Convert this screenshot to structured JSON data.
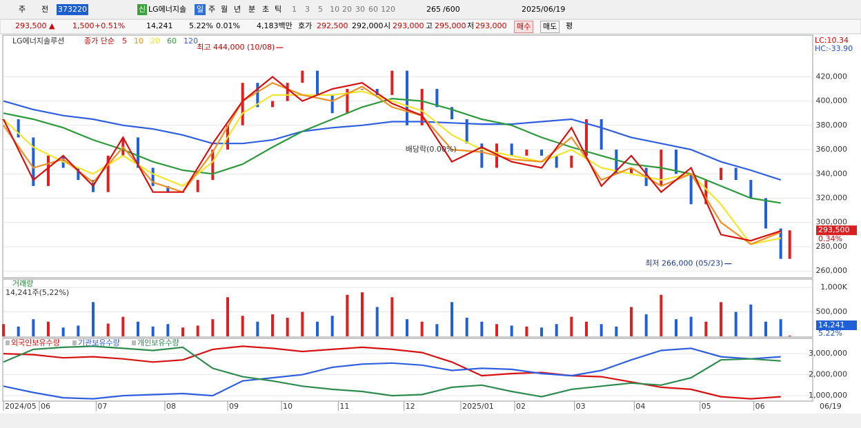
{
  "toolbar": [
    "주",
    "전",
    "373220",
    "신",
    "LG에너지솔",
    "일",
    "주",
    "월",
    "년",
    "분",
    "초",
    "틱",
    "1",
    "3",
    "5",
    "10",
    "20",
    "30",
    "60",
    "120",
    "265",
    "/600",
    "2025/06/19"
  ],
  "infobar": [
    "293,500 ▲",
    "1,500",
    "+0.51%",
    "14,241",
    "5.22%",
    "0.01%",
    "4,183백만",
    "호가",
    "292,500",
    "292,000",
    "시",
    "293,000",
    "고",
    "295,000",
    "저",
    "293,000",
    "매수",
    "매도",
    "평"
  ],
  "chart_data": [
    {
      "type": "candlestick-line",
      "title": "LG에너지솔루션",
      "legend_prefix": "종가 단순",
      "lc_label": "LC:10.34",
      "hc_label": "HC:-33.90",
      "last_price": {
        "value": 293500,
        "label": "293,500"
      },
      "change_label": "0.34%",
      "xlim": [
        0,
        270
      ],
      "ylim": [
        255000,
        452000
      ],
      "yticks": [
        {
          "value": 260000,
          "label": "260,000"
        },
        {
          "value": 280000,
          "label": "280,000"
        },
        {
          "value": 300000,
          "label": "300,000"
        },
        {
          "value": 320000,
          "label": "320,000"
        },
        {
          "value": 340000,
          "label": "340,000"
        },
        {
          "value": 360000,
          "label": "360,000"
        },
        {
          "value": 380000,
          "label": "380,000"
        },
        {
          "value": 400000,
          "label": "400,000"
        },
        {
          "value": 420000,
          "label": "420,000"
        }
      ],
      "candles": {
        "x": [
          0,
          5,
          10,
          15,
          20,
          25,
          30,
          35,
          40,
          45,
          50,
          55,
          60,
          65,
          70,
          75,
          80,
          85,
          90,
          95,
          100,
          105,
          110,
          115,
          120,
          125,
          130,
          135,
          140,
          145,
          150,
          155,
          160,
          165,
          170,
          175,
          180,
          185,
          190,
          195,
          200,
          205,
          210,
          215,
          220,
          225,
          230,
          235,
          240,
          245,
          250,
          255,
          260,
          263
        ],
        "values": [
          385000,
          370000,
          330000,
          355000,
          345000,
          335000,
          325000,
          355000,
          370000,
          345000,
          330000,
          325000,
          325000,
          335000,
          360000,
          380000,
          415000,
          395000,
          400000,
          415000,
          425000,
          405000,
          390000,
          410000,
          410000,
          405000,
          425000,
          380000,
          410000,
          395000,
          385000,
          365000,
          345000,
          365000,
          355000,
          360000,
          355000,
          345000,
          355000,
          385000,
          360000,
          340000,
          345000,
          330000,
          360000,
          340000,
          315000,
          335000,
          345000,
          335000,
          320000,
          295000,
          270000,
          293500
        ]
      },
      "x": [
        0,
        10,
        20,
        30,
        40,
        50,
        60,
        70,
        80,
        90,
        100,
        110,
        120,
        130,
        140,
        150,
        160,
        170,
        180,
        190,
        200,
        210,
        220,
        230,
        240,
        250,
        260
      ],
      "series": [
        {
          "name": "120",
          "color": "#2f5fe0",
          "values": [
            400000,
            393000,
            388000,
            385000,
            380000,
            377000,
            372000,
            365000,
            365000,
            368000,
            375000,
            378000,
            380000,
            383000,
            383000,
            382000,
            381000,
            381000,
            383000,
            385000,
            378000,
            370000,
            365000,
            360000,
            350000,
            343000,
            335000
          ]
        },
        {
          "name": "60",
          "color": "#2a9a3a",
          "values": [
            390000,
            385000,
            378000,
            368000,
            360000,
            350000,
            343000,
            340000,
            348000,
            362000,
            375000,
            385000,
            395000,
            402000,
            400000,
            393000,
            385000,
            380000,
            370000,
            362000,
            355000,
            348000,
            345000,
            340000,
            330000,
            320000,
            316000
          ]
        },
        {
          "name": "20",
          "color": "#f3e62a",
          "values": [
            385000,
            362000,
            350000,
            340000,
            355000,
            340000,
            330000,
            350000,
            390000,
            405000,
            405000,
            405000,
            408000,
            400000,
            392000,
            372000,
            360000,
            355000,
            350000,
            360000,
            345000,
            340000,
            335000,
            340000,
            315000,
            282000,
            287000
          ]
        },
        {
          "name": "10",
          "color": "#f09020",
          "values": [
            380000,
            345000,
            352000,
            333000,
            362000,
            333000,
            325000,
            358000,
            400000,
            415000,
            405000,
            400000,
            412000,
            395000,
            388000,
            360000,
            358000,
            352000,
            350000,
            370000,
            335000,
            345000,
            330000,
            340000,
            300000,
            282000,
            292000
          ]
        },
        {
          "name": "5",
          "color": "#d81010",
          "values": [
            385000,
            335000,
            355000,
            330000,
            370000,
            325000,
            325000,
            365000,
            400000,
            420000,
            400000,
            410000,
            415000,
            398000,
            388000,
            350000,
            362000,
            350000,
            345000,
            378000,
            330000,
            355000,
            325000,
            345000,
            290000,
            285000,
            293000
          ]
        }
      ],
      "annotations": [
        {
          "text": "최고 444,000 (10/08)",
          "x": 94,
          "y": 444000,
          "side": "left"
        },
        {
          "text": "최저 266,000 (05/23)",
          "x": 244,
          "y": 266000,
          "side": "left"
        },
        {
          "text": "배당락(0.00%)",
          "x": 143,
          "y": 360000,
          "side": "none"
        }
      ]
    },
    {
      "type": "bar",
      "title": "거래량",
      "subtitle": "14,241주(5,22%)",
      "xlim": [
        0,
        270
      ],
      "ylim": [
        0,
        1170000
      ],
      "yticks": [
        {
          "value": 500000,
          "label": "500,000"
        },
        {
          "value": 1000000,
          "label": "1,000K"
        }
      ],
      "last_value": {
        "value": 14241,
        "label": "14,241"
      },
      "last_ratio": "5.22%",
      "x": [
        0,
        5,
        10,
        15,
        20,
        25,
        30,
        35,
        40,
        45,
        50,
        55,
        60,
        65,
        70,
        75,
        80,
        85,
        90,
        95,
        100,
        105,
        110,
        115,
        120,
        125,
        130,
        135,
        140,
        145,
        150,
        155,
        160,
        165,
        170,
        175,
        180,
        185,
        190,
        195,
        200,
        205,
        210,
        215,
        220,
        225,
        230,
        235,
        240,
        245,
        250,
        255,
        260,
        263
      ],
      "values": [
        250000,
        200000,
        350000,
        300000,
        180000,
        220000,
        700000,
        260000,
        400000,
        300000,
        200000,
        250000,
        180000,
        220000,
        350000,
        800000,
        420000,
        300000,
        450000,
        380000,
        500000,
        300000,
        420000,
        850000,
        900000,
        600000,
        800000,
        350000,
        300000,
        250000,
        700000,
        380000,
        300000,
        250000,
        220000,
        200000,
        180000,
        250000,
        400000,
        300000,
        250000,
        200000,
        600000,
        450000,
        850000,
        350000,
        400000,
        300000,
        700000,
        500000,
        650000,
        300000,
        350000,
        14241
      ]
    },
    {
      "type": "line",
      "xlim": [
        0,
        270
      ],
      "ylim": [
        740000,
        3690000
      ],
      "yticks": [
        {
          "value": 1000000,
          "label": "1,000,000"
        },
        {
          "value": 2000000,
          "label": "2,000,000"
        },
        {
          "value": 3000000,
          "label": "3,000,000"
        }
      ],
      "xticks": [
        {
          "value": 0,
          "label": "2024/05"
        },
        {
          "value": 12,
          "label": "06"
        },
        {
          "value": 31,
          "label": "07"
        },
        {
          "value": 54,
          "label": "08"
        },
        {
          "value": 75,
          "label": "09"
        },
        {
          "value": 93,
          "label": "10"
        },
        {
          "value": 112,
          "label": "11"
        },
        {
          "value": 134,
          "label": "12"
        },
        {
          "value": 153,
          "label": "2025/01"
        },
        {
          "value": 171,
          "label": "02"
        },
        {
          "value": 191,
          "label": "03"
        },
        {
          "value": 211,
          "label": "04"
        },
        {
          "value": 233,
          "label": "05"
        },
        {
          "value": 251,
          "label": "06"
        }
      ],
      "current_date_label": "06/19",
      "x": [
        0,
        10,
        20,
        30,
        40,
        50,
        60,
        70,
        80,
        90,
        100,
        110,
        120,
        130,
        140,
        150,
        160,
        170,
        180,
        190,
        200,
        210,
        220,
        230,
        240,
        250,
        260
      ],
      "series": [
        {
          "name": "외국인보유수량",
          "color": "#d81010",
          "values": [
            3000000,
            2950000,
            2800000,
            2850000,
            2750000,
            2600000,
            2700000,
            3200000,
            3350000,
            3250000,
            3100000,
            3200000,
            3300000,
            3200000,
            3050000,
            2600000,
            1950000,
            2050000,
            2100000,
            1950000,
            1900000,
            1650000,
            1400000,
            1300000,
            950000,
            850000,
            950000
          ]
        },
        {
          "name": "기관보유수량",
          "color": "#2f5fe0",
          "values": [
            1450000,
            1150000,
            900000,
            850000,
            1000000,
            1050000,
            1100000,
            1000000,
            1700000,
            1850000,
            2000000,
            2350000,
            2500000,
            2550000,
            2450000,
            2200000,
            2300000,
            2250000,
            2050000,
            1950000,
            2200000,
            2700000,
            3150000,
            3250000,
            2850000,
            2750000,
            2850000
          ]
        },
        {
          "name": "개인보유수량",
          "color": "#2e8b4e",
          "values": [
            2600000,
            3200000,
            3300000,
            3350000,
            3250000,
            3150000,
            3300000,
            2300000,
            1900000,
            1700000,
            1450000,
            1300000,
            1200000,
            1000000,
            1050000,
            1400000,
            1500000,
            1200000,
            950000,
            1300000,
            1450000,
            1600000,
            1500000,
            1850000,
            2700000,
            2750000,
            2650000
          ]
        }
      ]
    }
  ]
}
